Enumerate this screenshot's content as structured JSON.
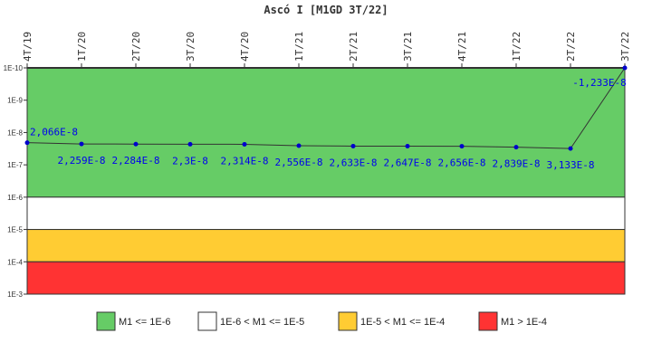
{
  "chart_data": {
    "type": "line",
    "title": "Ascó I [M1GD 3T/22]",
    "xlabel": "",
    "ylabel": "",
    "y_scale": "log",
    "y_reversed": true,
    "ylim": [
      1e-10,
      0.001
    ],
    "y_ticks": [
      "1E-10",
      "1E-9",
      "1E-8",
      "1E-7",
      "1E-6",
      "1E-5",
      "1E-4",
      "1E-3"
    ],
    "categories": [
      "4T/19",
      "1T/20",
      "2T/20",
      "3T/20",
      "4T/20",
      "1T/21",
      "2T/21",
      "3T/21",
      "4T/21",
      "1T/22",
      "2T/22",
      "3T/22"
    ],
    "values": [
      2.066e-08,
      2.259e-08,
      2.284e-08,
      2.3e-08,
      2.314e-08,
      2.556e-08,
      2.633e-08,
      2.647e-08,
      2.656e-08,
      2.839e-08,
      3.133e-08,
      -1.233e-08
    ],
    "data_labels": [
      "2,066E-8",
      "2,259E-8",
      "2,284E-8",
      "2,3E-8",
      "2,314E-8",
      "2,556E-8",
      "2,633E-8",
      "2,647E-8",
      "2,656E-8",
      "2,839E-8",
      "3,133E-8",
      "-1,233E-8"
    ],
    "grid": false,
    "line_color": "#333333",
    "marker_color": "#0000cc",
    "bands": [
      {
        "label": "M1 <= 1E-6",
        "from": 1e-10,
        "to": 1e-06,
        "color": "#66cc66"
      },
      {
        "label": "1E-6 < M1 <= 1E-5",
        "from": 1e-06,
        "to": 1e-05,
        "color": "#ffffff"
      },
      {
        "label": "1E-5 < M1 <= 1E-4",
        "from": 1e-05,
        "to": 0.0001,
        "color": "#ffcc33"
      },
      {
        "label": "M1 > 1E-4",
        "from": 0.0001,
        "to": 0.001,
        "color": "#ff3333"
      }
    ],
    "legend_position": "bottom"
  }
}
